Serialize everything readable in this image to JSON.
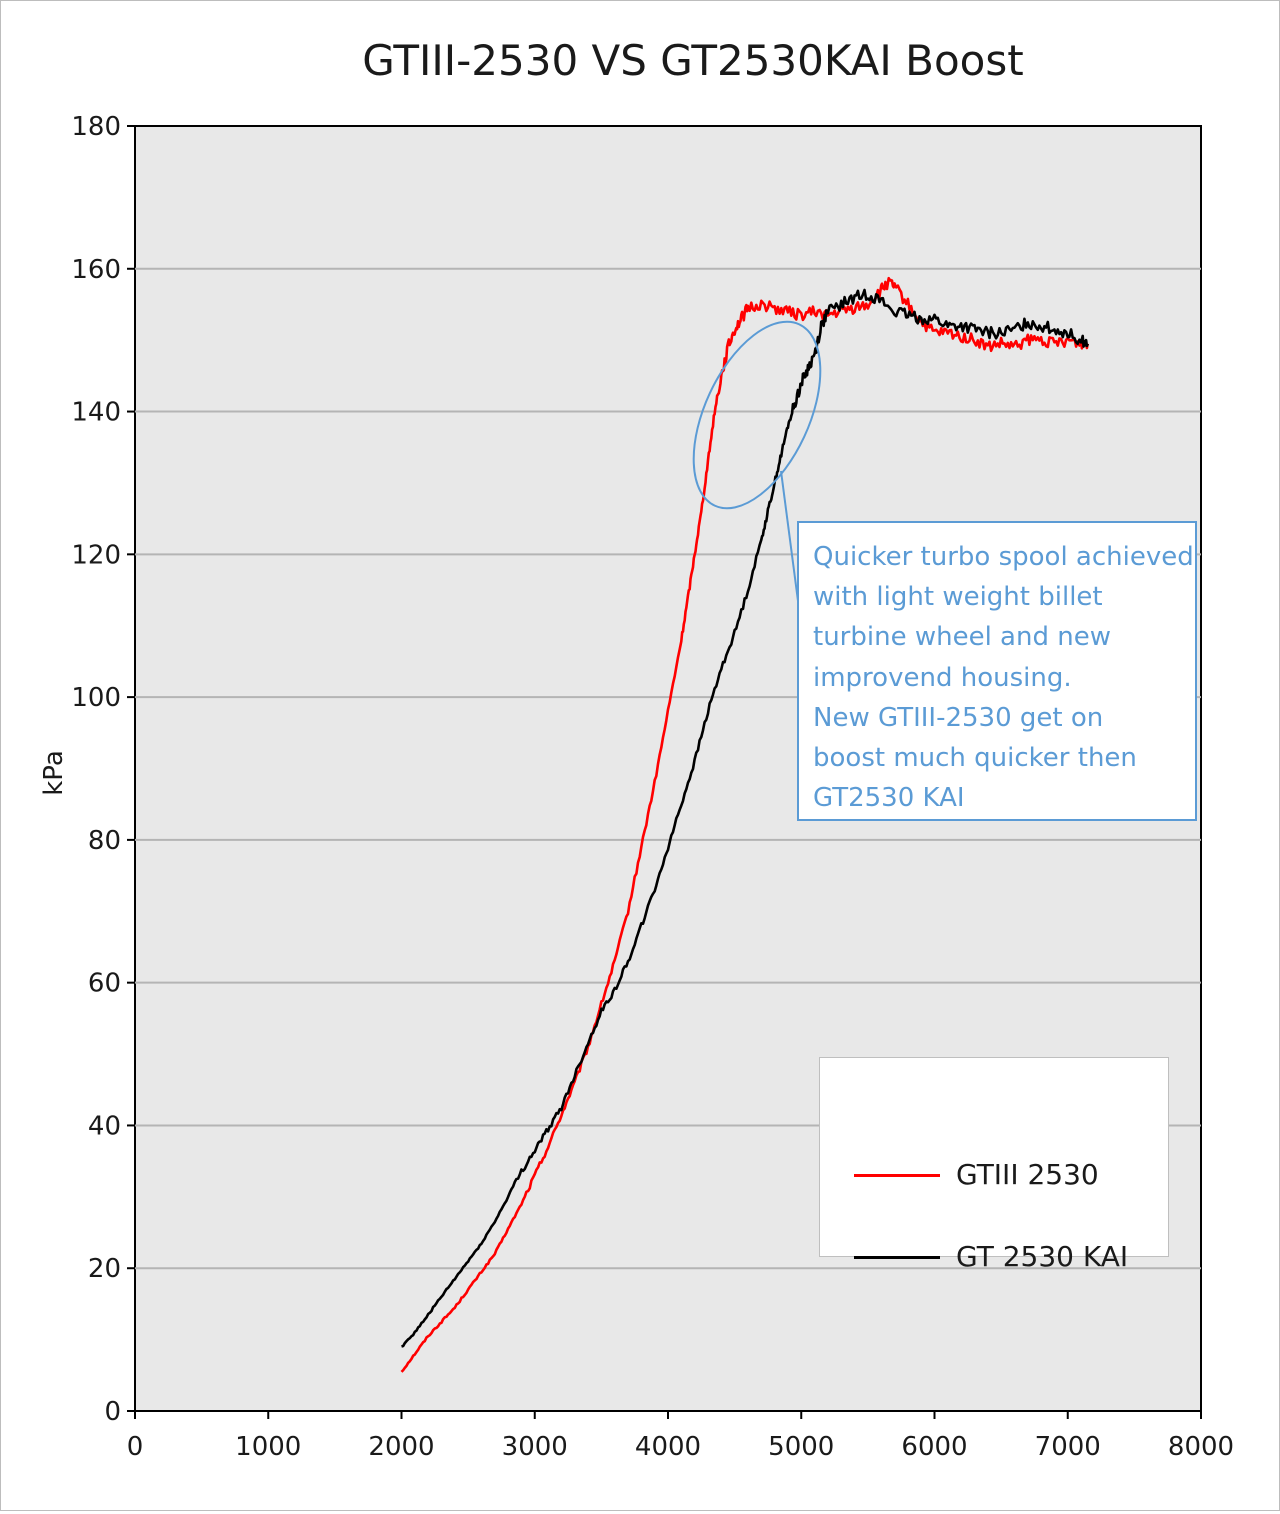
{
  "chart_data": {
    "type": "line",
    "title": "GTIII-2530 VS GT2530KAI Boost",
    "xlabel": "",
    "ylabel": "kPa",
    "xlim": [
      0,
      8000
    ],
    "ylim": [
      0,
      180
    ],
    "x_ticks": [
      "0",
      "1000",
      "2000",
      "3000",
      "4000",
      "5000",
      "6000",
      "7000",
      "8000"
    ],
    "y_ticks": [
      "0",
      "20",
      "40",
      "60",
      "80",
      "100",
      "120",
      "140",
      "160",
      "180"
    ],
    "grid": "horizontal",
    "legend_position": "bottom-right",
    "series": [
      {
        "name": "GTIII 2530",
        "color": "#ff0000",
        "points": [
          [
            2000,
            5.5
          ],
          [
            2100,
            8
          ],
          [
            2200,
            10.5
          ],
          [
            2300,
            12.5
          ],
          [
            2400,
            14.5
          ],
          [
            2500,
            17
          ],
          [
            2600,
            19.5
          ],
          [
            2700,
            22
          ],
          [
            2800,
            25.5
          ],
          [
            2900,
            29
          ],
          [
            3000,
            33
          ],
          [
            3100,
            37
          ],
          [
            3200,
            41.5
          ],
          [
            3300,
            46
          ],
          [
            3400,
            51
          ],
          [
            3500,
            57
          ],
          [
            3600,
            63
          ],
          [
            3700,
            70
          ],
          [
            3800,
            79
          ],
          [
            3900,
            88
          ],
          [
            4000,
            98
          ],
          [
            4100,
            108
          ],
          [
            4150,
            114
          ],
          [
            4200,
            120
          ],
          [
            4250,
            126
          ],
          [
            4300,
            133
          ],
          [
            4350,
            140
          ],
          [
            4400,
            145
          ],
          [
            4450,
            149
          ],
          [
            4500,
            151.5
          ],
          [
            4550,
            153
          ],
          [
            4600,
            154.5
          ],
          [
            4700,
            155
          ],
          [
            4800,
            154.5
          ],
          [
            4900,
            154
          ],
          [
            5000,
            153.5
          ],
          [
            5100,
            154
          ],
          [
            5200,
            153.5
          ],
          [
            5300,
            154
          ],
          [
            5400,
            154.5
          ],
          [
            5500,
            155
          ],
          [
            5600,
            157
          ],
          [
            5650,
            158
          ],
          [
            5700,
            157.5
          ],
          [
            5800,
            155
          ],
          [
            5900,
            152.5
          ],
          [
            6000,
            151
          ],
          [
            6100,
            151
          ],
          [
            6200,
            150.5
          ],
          [
            6300,
            150
          ],
          [
            6400,
            149
          ],
          [
            6500,
            149.5
          ],
          [
            6600,
            149
          ],
          [
            6700,
            150
          ],
          [
            6800,
            150
          ],
          [
            6900,
            149.5
          ],
          [
            7000,
            150
          ],
          [
            7100,
            149.5
          ],
          [
            7150,
            149.5
          ]
        ]
      },
      {
        "name": "GT 2530 KAI",
        "color": "#000000",
        "points": [
          [
            2000,
            9
          ],
          [
            2100,
            11
          ],
          [
            2200,
            13.5
          ],
          [
            2300,
            16
          ],
          [
            2400,
            18.5
          ],
          [
            2500,
            21
          ],
          [
            2600,
            23.5
          ],
          [
            2700,
            26.5
          ],
          [
            2800,
            30
          ],
          [
            2900,
            33.5
          ],
          [
            3000,
            36.5
          ],
          [
            3100,
            39.5
          ],
          [
            3200,
            42.5
          ],
          [
            3300,
            47
          ],
          [
            3400,
            51.5
          ],
          [
            3500,
            56
          ],
          [
            3600,
            59
          ],
          [
            3700,
            63
          ],
          [
            3800,
            68
          ],
          [
            3900,
            73
          ],
          [
            4000,
            79
          ],
          [
            4100,
            85
          ],
          [
            4200,
            91
          ],
          [
            4300,
            98
          ],
          [
            4400,
            104
          ],
          [
            4500,
            109
          ],
          [
            4600,
            115
          ],
          [
            4700,
            122
          ],
          [
            4750,
            126
          ],
          [
            4800,
            130
          ],
          [
            4850,
            134
          ],
          [
            4900,
            138
          ],
          [
            4950,
            141
          ],
          [
            5000,
            144
          ],
          [
            5050,
            146
          ],
          [
            5100,
            148
          ],
          [
            5150,
            152
          ],
          [
            5200,
            154
          ],
          [
            5300,
            155
          ],
          [
            5400,
            156
          ],
          [
            5500,
            156.5
          ],
          [
            5600,
            155.5
          ],
          [
            5700,
            154
          ],
          [
            5800,
            153.5
          ],
          [
            5900,
            153
          ],
          [
            6000,
            153
          ],
          [
            6100,
            152
          ],
          [
            6200,
            152
          ],
          [
            6300,
            151.5
          ],
          [
            6400,
            151
          ],
          [
            6500,
            151
          ],
          [
            6600,
            151.5
          ],
          [
            6700,
            152.5
          ],
          [
            6800,
            152
          ],
          [
            6900,
            151.5
          ],
          [
            7000,
            151
          ],
          [
            7100,
            150
          ],
          [
            7150,
            149.5
          ]
        ]
      }
    ],
    "annotation": {
      "lines": [
        "Quicker turbo spool achieved",
        "with light weight billet",
        "turbine wheel and new",
        "improvend housing.",
        "New GTIII-2530 get on",
        "boost much quicker then",
        "GT2530 KAI"
      ],
      "color": "#5b9bd5"
    }
  }
}
